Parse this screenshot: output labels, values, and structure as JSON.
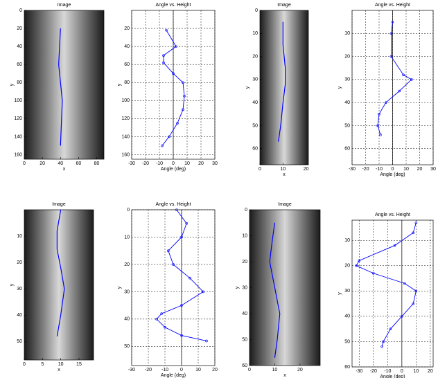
{
  "chart_data": [
    {
      "type": "image",
      "title": "Image",
      "xlabel": "x",
      "ylabel": "y",
      "xlim": [
        0,
        88
      ],
      "xticks": [
        0,
        20,
        40,
        60,
        80
      ],
      "ylim": [
        0,
        165
      ],
      "yticks": [
        0,
        20,
        40,
        60,
        80,
        100,
        120,
        140,
        160
      ],
      "color": "#0000ff",
      "spine": {
        "x": [
          40,
          39,
          38,
          40,
          42,
          41,
          40
        ],
        "y": [
          20,
          40,
          60,
          80,
          100,
          125,
          150
        ]
      }
    },
    {
      "type": "line",
      "title": "Angle vs. Height",
      "xlabel": "Angle (deg)",
      "ylabel": "y",
      "xlim": [
        -30,
        30
      ],
      "xticks": [
        -30,
        -20,
        -10,
        0,
        10,
        20,
        30
      ],
      "ylim": [
        0,
        165
      ],
      "yticks": [
        20,
        40,
        60,
        80,
        100,
        120,
        140,
        160
      ],
      "grid": true,
      "color": "#0000ff",
      "curve": {
        "angle": [
          -5,
          2,
          -7,
          -7,
          0,
          7,
          8,
          7,
          3,
          -3,
          -8
        ],
        "height": [
          22,
          40,
          50,
          58,
          70,
          80,
          95,
          110,
          125,
          140,
          150
        ]
      }
    },
    {
      "type": "image",
      "title": "Image",
      "xlabel": "x",
      "ylabel": "y",
      "xlim": [
        0,
        21
      ],
      "xticks": [
        0,
        10,
        20
      ],
      "ylim": [
        0,
        67
      ],
      "yticks": [
        0,
        10,
        20,
        30,
        40,
        50,
        60
      ],
      "color": "#0000ff",
      "spine": {
        "x": [
          10,
          10,
          11,
          11,
          10,
          9,
          8
        ],
        "y": [
          5,
          15,
          25,
          32,
          40,
          50,
          57
        ]
      }
    },
    {
      "type": "line",
      "title": "Angle vs. Height",
      "xlabel": "Angle (deg)",
      "ylabel": "y",
      "xlim": [
        -30,
        30
      ],
      "xticks": [
        -30,
        -20,
        -10,
        0,
        10,
        20,
        30
      ],
      "ylim": [
        0,
        67
      ],
      "yticks": [
        10,
        20,
        30,
        40,
        50,
        60
      ],
      "grid": true,
      "color": "#0000ff",
      "curve": {
        "angle": [
          0,
          -1,
          -1,
          8,
          14,
          5,
          -5,
          -10,
          -11,
          -9
        ],
        "height": [
          5,
          10,
          20,
          28,
          30,
          35,
          40,
          45,
          50,
          54
        ]
      }
    },
    {
      "type": "image",
      "title": "Image",
      "xlabel": "x",
      "ylabel": "y",
      "xlim": [
        0,
        19
      ],
      "xticks": [
        0,
        5,
        10,
        15
      ],
      "ylim": [
        0,
        57
      ],
      "yticks": [
        10,
        20,
        30,
        40,
        50
      ],
      "color": "#0000ff",
      "spine": {
        "x": [
          10,
          9,
          9,
          10,
          11,
          10,
          9
        ],
        "y": [
          0,
          8,
          15,
          22,
          30,
          40,
          48
        ]
      }
    },
    {
      "type": "line",
      "title": "Angle vs. Height",
      "xlabel": "Angle (deg)",
      "ylabel": "y",
      "xlim": [
        -30,
        20
      ],
      "xticks": [
        -30,
        -20,
        -10,
        0,
        10,
        20
      ],
      "ylim": [
        0,
        57
      ],
      "yticks": [
        0,
        10,
        20,
        30,
        40,
        50
      ],
      "grid": true,
      "color": "#0000ff",
      "curve": {
        "angle": [
          -3,
          3,
          0,
          -8,
          -5,
          5,
          13,
          0,
          -12,
          -15,
          -10,
          0,
          15
        ],
        "height": [
          0,
          5,
          10,
          15,
          20,
          25,
          30,
          35,
          38,
          40,
          43,
          46,
          48
        ]
      }
    },
    {
      "type": "image",
      "title": "Image",
      "xlabel": "x",
      "ylabel": "y",
      "xlim": [
        0,
        28
      ],
      "xticks": [
        0,
        10,
        20
      ],
      "ylim": [
        0,
        60
      ],
      "yticks": [
        0,
        10,
        20,
        30,
        40,
        50,
        60
      ],
      "color": "#0000ff",
      "spine": {
        "x": [
          10,
          9,
          8,
          10,
          12,
          11,
          10
        ],
        "y": [
          5,
          12,
          20,
          30,
          40,
          50,
          57
        ]
      }
    },
    {
      "type": "line",
      "title": "Angle vs. Height",
      "xlabel": "Angle (deg)",
      "ylabel": "y",
      "xlim": [
        -35,
        22
      ],
      "xticks": [
        -30,
        -20,
        -10,
        0,
        10,
        20
      ],
      "ylim": [
        2,
        60
      ],
      "yticks": [
        10,
        20,
        30,
        40,
        50,
        60
      ],
      "grid": true,
      "color": "#0000ff",
      "curve": {
        "angle": [
          10,
          8,
          -5,
          -30,
          -32,
          -20,
          2,
          10,
          8,
          0,
          -8,
          -13,
          -14
        ],
        "height": [
          3,
          7,
          12,
          18,
          20,
          23,
          27,
          30,
          35,
          40,
          45,
          50,
          52
        ]
      }
    }
  ]
}
